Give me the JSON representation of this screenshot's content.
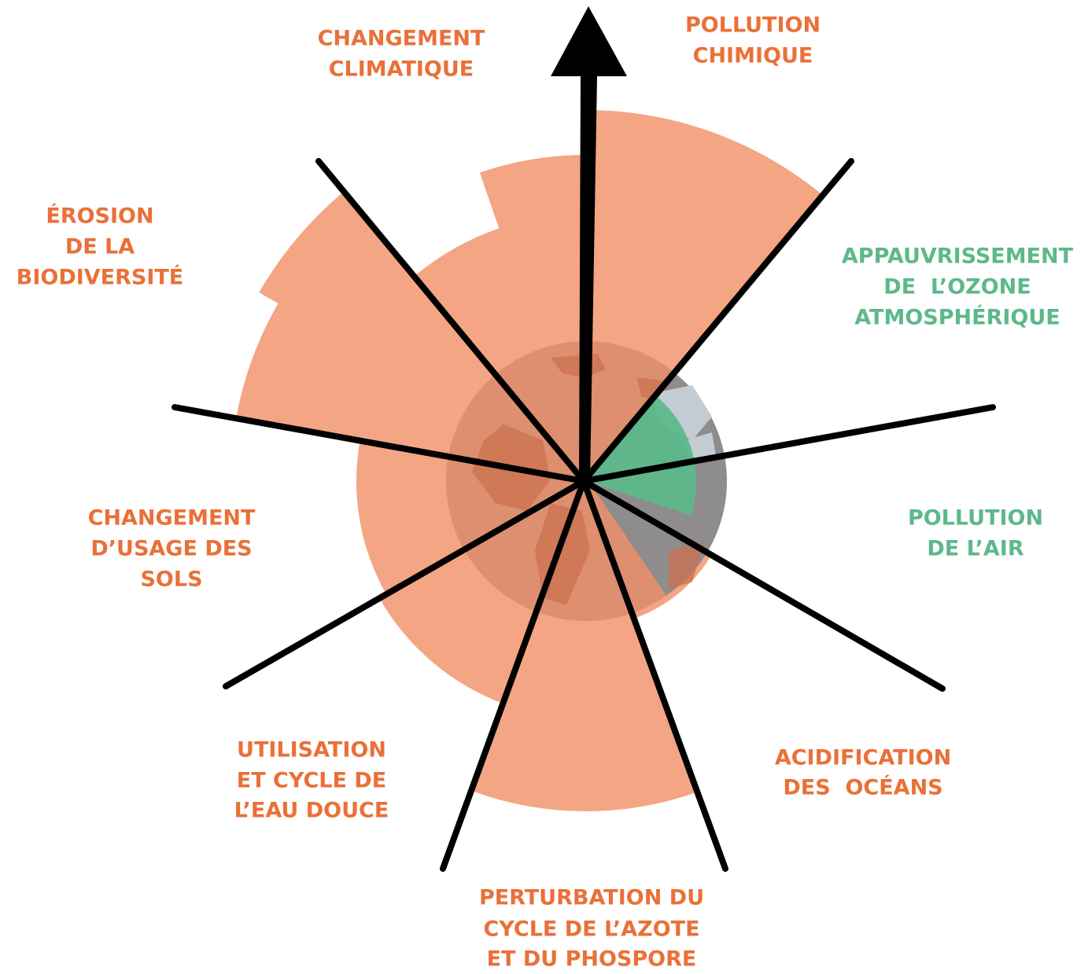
{
  "labels": [
    {
      "lines": [
        "CHANGEMENT",
        "CLIMATIQUE"
      ]
    },
    {
      "lines": [
        "POLLUTION",
        "CHIMIQUE"
      ]
    },
    {
      "lines": [
        "ÉROSION",
        "DE LA",
        "BIODIVERSITÉ"
      ]
    },
    {
      "lines": [
        "APPAUVRISSEMENT",
        "DE  L’OZONE",
        "ATMOSPHÉRIQUE"
      ]
    },
    {
      "lines": [
        "CHANGEMENT",
        "D’USAGE DES",
        "SOLS"
      ]
    },
    {
      "lines": [
        "POLLUTION",
        "DE L’AIR"
      ]
    },
    {
      "lines": [
        "UTILISATION",
        "ET CYCLE DE",
        "L’EAU DOUCE"
      ]
    },
    {
      "lines": [
        "ACIDIFICATION",
        "DES  OCÉANS"
      ]
    },
    {
      "lines": [
        "PERTURBATION DU",
        "CYCLE DE L’AZOTE",
        "ET DU PHOSPORE"
      ]
    }
  ]
}
